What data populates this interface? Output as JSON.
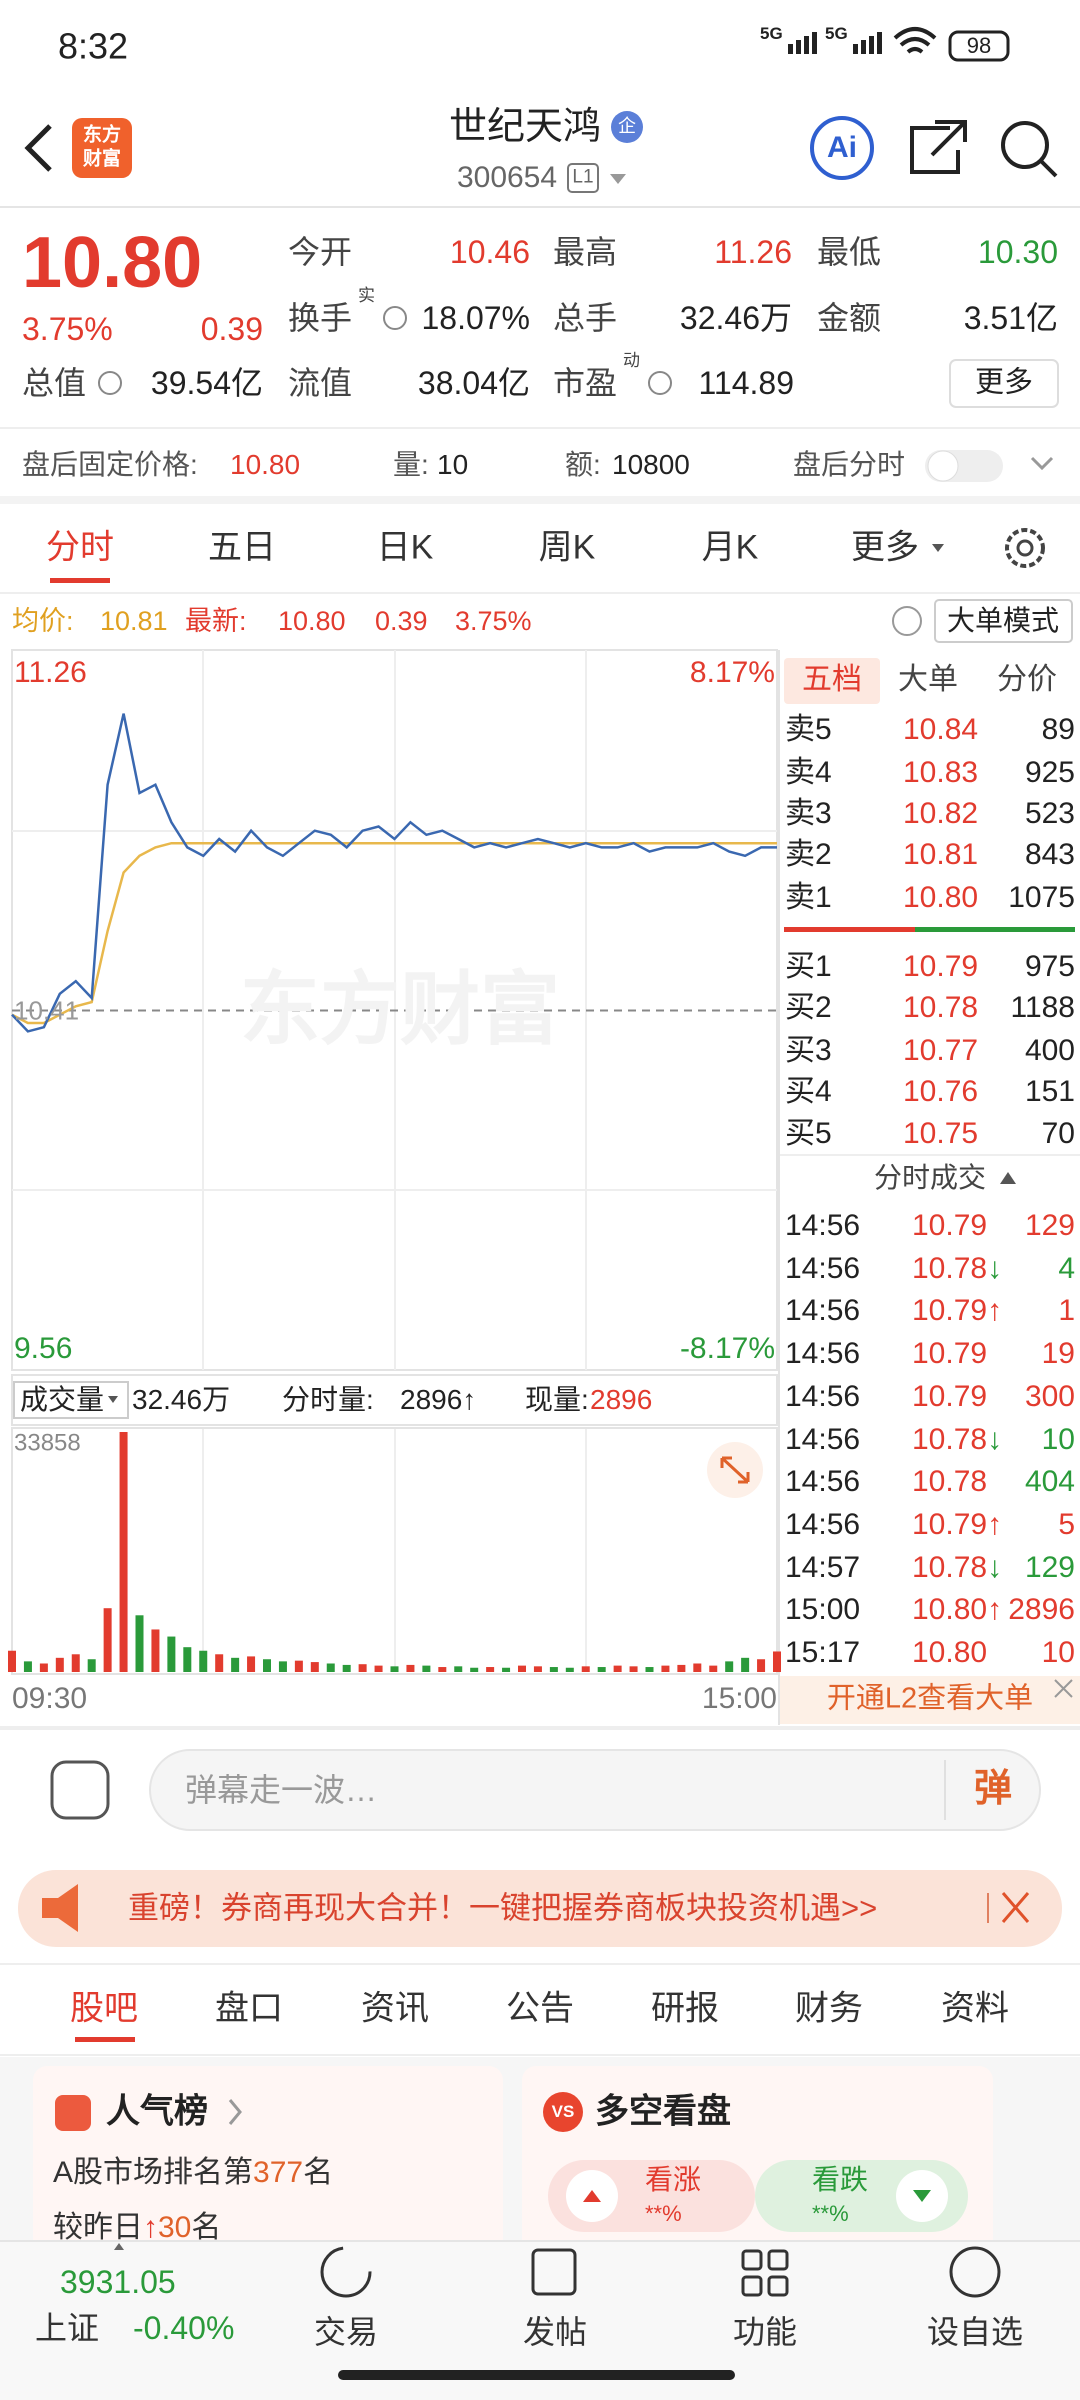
{
  "status_bar": {
    "time": "8:32",
    "signal_1": "5G",
    "signal_2": "5G",
    "battery": "98"
  },
  "header": {
    "logo": [
      "东方",
      "财富"
    ],
    "title": "世纪天鸿",
    "badge": "企",
    "code": "300654",
    "level": "L1",
    "ai": "Ai"
  },
  "quote": {
    "price": "10.80",
    "change_pct": "3.75%",
    "change": "0.39",
    "stats": [
      {
        "label": "今开",
        "value": "10.46"
      },
      {
        "label": "最高",
        "value": "11.26"
      },
      {
        "label": "最低",
        "value": "10.30"
      },
      {
        "label": "换手",
        "sup": "实",
        "value": "18.07%"
      },
      {
        "label": "总手",
        "value": "32.46万"
      },
      {
        "label": "金额",
        "value": "3.51亿"
      },
      {
        "label": "总值",
        "value": "39.54亿"
      },
      {
        "label": "流值",
        "value": "38.04亿"
      },
      {
        "label": "市盈",
        "sup": "动",
        "value": "114.89"
      }
    ],
    "more": "更多"
  },
  "after_hours": {
    "price_label": "盘后固定价格:",
    "price": "10.80",
    "volume_label": "量:",
    "volume": "10",
    "amount_label": "额:",
    "amount": "10800",
    "chart_label": "盘后分时"
  },
  "tabs": [
    "分时",
    "五日",
    "日K",
    "周K",
    "月K",
    "更多"
  ],
  "chart_info": {
    "avg_label": "均价:",
    "avg": "10.81",
    "last_label": "最新:",
    "last": "10.80",
    "change": "0.39",
    "change_pct": "3.75%",
    "mode": "大单模式"
  },
  "intraday": {
    "type": "line",
    "ylim": [
      9.56,
      11.26
    ],
    "top_pct": "8.17%",
    "bottom_pct": "-8.17%",
    "prev_close": 10.41,
    "watermark": "东方财富",
    "color": "#3a68b0",
    "avg_color": "#e8b84c",
    "values": [
      10.4,
      10.36,
      10.37,
      10.45,
      10.48,
      10.44,
      10.95,
      11.12,
      10.93,
      10.95,
      10.86,
      10.8,
      10.78,
      10.82,
      10.79,
      10.84,
      10.8,
      10.78,
      10.81,
      10.84,
      10.83,
      10.8,
      10.84,
      10.85,
      10.82,
      10.86,
      10.83,
      10.84,
      10.82,
      10.8,
      10.81,
      10.8,
      10.81,
      10.82,
      10.81,
      10.8,
      10.81,
      10.8,
      10.8,
      10.81,
      10.79,
      10.8,
      10.8,
      10.8,
      10.81,
      10.79,
      10.78,
      10.8,
      10.8
    ],
    "avg_values": [
      10.4,
      10.38,
      10.38,
      10.4,
      10.42,
      10.43,
      10.6,
      10.74,
      10.78,
      10.8,
      10.81,
      10.81,
      10.81,
      10.81,
      10.81,
      10.81,
      10.81,
      10.81,
      10.81,
      10.81,
      10.81,
      10.81,
      10.81,
      10.81,
      10.81,
      10.81,
      10.81,
      10.81,
      10.81,
      10.81,
      10.81,
      10.81,
      10.81,
      10.81,
      10.81,
      10.81,
      10.81,
      10.81,
      10.81,
      10.81,
      10.81,
      10.81,
      10.81,
      10.81,
      10.81,
      10.81,
      10.81,
      10.81,
      10.81
    ]
  },
  "volume_chart": {
    "type": "bar",
    "label": "成交量",
    "total": "32.46万",
    "tick_label": "分时量:",
    "tick_volume": "2896",
    "tick_arrow": "↑",
    "now_label": "现量:",
    "now": "2896",
    "ylim": [
      0,
      33858
    ],
    "up_color": "#e23b2e",
    "down_color": "#2a9a3a",
    "x_labels": [
      "09:30",
      "15:00"
    ],
    "values": [
      3000,
      1500,
      1200,
      2000,
      2500,
      1800,
      9000,
      33858,
      8000,
      6000,
      5000,
      3500,
      3000,
      2500,
      2000,
      2200,
      1800,
      1500,
      1600,
      1400,
      1200,
      1000,
      1100,
      900,
      800,
      1000,
      900,
      700,
      800,
      600,
      700,
      600,
      900,
      800,
      700,
      600,
      800,
      700,
      900,
      800,
      700,
      900,
      1000,
      1200,
      900,
      1500,
      2000,
      1800,
      2896
    ]
  },
  "order_book": {
    "tabs": [
      "五档",
      "大单",
      "分价"
    ],
    "asks": [
      {
        "label": "卖5",
        "price": "10.84",
        "volume": "89"
      },
      {
        "label": "卖4",
        "price": "10.83",
        "volume": "925"
      },
      {
        "label": "卖3",
        "price": "10.82",
        "volume": "523"
      },
      {
        "label": "卖2",
        "price": "10.81",
        "volume": "843"
      },
      {
        "label": "卖1",
        "price": "10.80",
        "volume": "1075"
      }
    ],
    "bids": [
      {
        "label": "买1",
        "price": "10.79",
        "volume": "975"
      },
      {
        "label": "买2",
        "price": "10.78",
        "volume": "1188"
      },
      {
        "label": "买3",
        "price": "10.77",
        "volume": "400"
      },
      {
        "label": "买4",
        "price": "10.76",
        "volume": "151"
      },
      {
        "label": "买5",
        "price": "10.75",
        "volume": "70"
      }
    ],
    "trades_title": "分时成交",
    "trades": [
      {
        "time": "14:56",
        "price": "10.79",
        "volume": "129",
        "color": "#e23b2e"
      },
      {
        "time": "14:56",
        "price": "10.78",
        "arrow": "↓",
        "volume": "4",
        "color": "#2a9a3a"
      },
      {
        "time": "14:56",
        "price": "10.79",
        "arrow": "↑",
        "volume": "1",
        "color": "#e23b2e"
      },
      {
        "time": "14:56",
        "price": "10.79",
        "volume": "19",
        "color": "#e23b2e"
      },
      {
        "time": "14:56",
        "price": "10.79",
        "volume": "300",
        "color": "#e23b2e"
      },
      {
        "time": "14:56",
        "price": "10.78",
        "arrow": "↓",
        "volume": "10",
        "color": "#2a9a3a"
      },
      {
        "time": "14:56",
        "price": "10.78",
        "volume": "404",
        "color": "#2a9a3a"
      },
      {
        "time": "14:56",
        "price": "10.79",
        "arrow": "↑",
        "volume": "5",
        "color": "#e23b2e"
      },
      {
        "time": "14:57",
        "price": "10.78",
        "arrow": "↓",
        "volume": "129",
        "color": "#2a9a3a"
      },
      {
        "time": "15:00",
        "price": "10.80",
        "arrow": "↑",
        "volume": "2896",
        "color": "#e23b2e"
      },
      {
        "time": "15:17",
        "price": "10.80",
        "volume": "10",
        "color": "#e23b2e"
      }
    ],
    "l2": "开通L2查看大单"
  },
  "comment_bar": {
    "placeholder": "弹幕走一波…",
    "button": "弹"
  },
  "banner": {
    "text": "重磅！券商再现大合并！一键把握券商板块投资机遇>>"
  },
  "sub_tabs": [
    "股吧",
    "盘口",
    "资讯",
    "公告",
    "研报",
    "财务",
    "资料"
  ],
  "cards": {
    "popularity": {
      "title": "人气榜",
      "rank_prefix": "A股市场排名第",
      "rank": "377",
      "rank_suffix": "名",
      "change_prefix": "较昨日",
      "change_arrow": "↑",
      "change": "30",
      "change_suffix": "名"
    },
    "sentiment": {
      "title": "多空看盘",
      "icon": "VS",
      "bull": "看涨",
      "bull_value": "**%",
      "bear": "看跌",
      "bear_value": "**%"
    }
  },
  "bottom_nav": {
    "index_value": "3931.05",
    "index_name": "上证",
    "index_change": "-0.40%",
    "items": [
      "交易",
      "发帖",
      "功能",
      "设自选"
    ]
  }
}
